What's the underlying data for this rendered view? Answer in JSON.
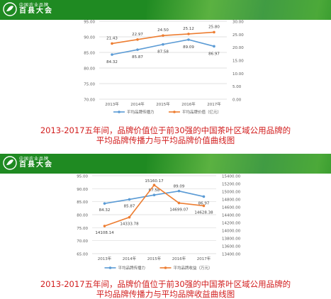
{
  "banners": [
    {
      "logo_sub": "中国农业品牌",
      "logo_main": "百县大会"
    },
    {
      "logo_sub": "中国农业品牌",
      "logo_main": "百县大会"
    }
  ],
  "captions": [
    {
      "line1": "2013-2017五年间，品牌价值位于前30强的中国茶叶区域公用品牌的",
      "line2": "平均品牌传播力与平均品牌价值曲线图"
    },
    {
      "line1": "2013-2017五年间，品牌价值位于前30强的中国茶叶区域公用品牌的",
      "line2": "平均品牌传播力与平均品牌收益曲线图"
    }
  ],
  "colors": {
    "banner": "#1f8a22",
    "series_blue": "#5b9bd5",
    "series_orange": "#ed7d31",
    "caption": "#d21e1e"
  },
  "chart_data": [
    {
      "type": "line",
      "categories": [
        "2013年",
        "2014年",
        "2015年",
        "2016年",
        "2017年"
      ],
      "y_left": {
        "min": 70,
        "max": 95,
        "ticks": [
          "70.00",
          "75.00",
          "80.00",
          "85.00",
          "90.00",
          "95.00"
        ]
      },
      "y_right": {
        "min": 0,
        "max": 30,
        "ticks": [
          "0.00",
          "5.00",
          "10.00",
          "15.00",
          "20.00",
          "25.00",
          "30.00"
        ]
      },
      "series": [
        {
          "name": "平均品牌传播力",
          "axis": "left",
          "values": [
            84.32,
            85.87,
            87.58,
            89.09,
            86.97
          ],
          "labels": [
            "84.32",
            "85.87",
            "87.58",
            "89.09",
            "86.97"
          ]
        },
        {
          "name": "平均品牌价值（亿元）",
          "axis": "right",
          "values": [
            21.43,
            22.97,
            24.5,
            25.12,
            25.8
          ],
          "labels": [
            "21.43",
            "22.97",
            "24.50",
            "25.12",
            "25.80"
          ]
        }
      ],
      "legend": "bottom"
    },
    {
      "type": "line",
      "categories": [
        "2013年",
        "2014年",
        "2015年",
        "2016年",
        "2017年"
      ],
      "y_left": {
        "min": 65,
        "max": 95,
        "ticks": [
          "65.00",
          "70.00",
          "75.00",
          "80.00",
          "85.00",
          "90.00",
          "95.00"
        ]
      },
      "y_right": {
        "min": 13400,
        "max": 15400,
        "ticks": [
          "13400.00",
          "13600.00",
          "13800.00",
          "14000.00",
          "14200.00",
          "14400.00",
          "14600.00",
          "14800.00",
          "15000.00",
          "15200.00",
          "15400.00"
        ]
      },
      "series": [
        {
          "name": "平均品牌传播力",
          "axis": "left",
          "values": [
            84.32,
            85.87,
            87.58,
            89.09,
            86.97
          ],
          "labels": [
            "84.32",
            "85.87",
            "87.58",
            "89.09",
            "86.97"
          ]
        },
        {
          "name": "平均品牌收益（万元）",
          "axis": "right",
          "values": [
            14108.14,
            14333.78,
            15160.17,
            14699.07,
            14628.38
          ],
          "labels": [
            "14108.14",
            "14333.78",
            "15160.17",
            "14699.07",
            "14628.38"
          ]
        }
      ],
      "legend": "bottom"
    }
  ]
}
